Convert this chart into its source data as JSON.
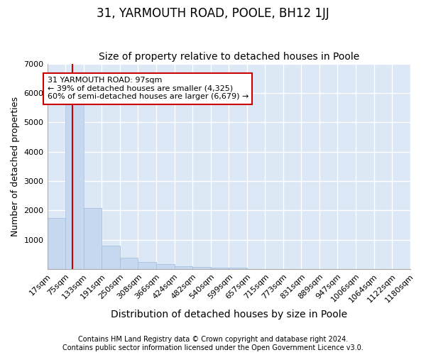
{
  "title": "31, YARMOUTH ROAD, POOLE, BH12 1JJ",
  "subtitle": "Size of property relative to detached houses in Poole",
  "xlabel": "Distribution of detached houses by size in Poole",
  "ylabel": "Number of detached properties",
  "bin_labels": [
    "17sqm",
    "75sqm",
    "133sqm",
    "191sqm",
    "250sqm",
    "308sqm",
    "366sqm",
    "424sqm",
    "482sqm",
    "540sqm",
    "599sqm",
    "657sqm",
    "715sqm",
    "773sqm",
    "831sqm",
    "889sqm",
    "947sqm",
    "1006sqm",
    "1064sqm",
    "1122sqm",
    "1180sqm"
  ],
  "bin_edges": [
    17,
    75,
    133,
    191,
    250,
    308,
    366,
    424,
    482,
    540,
    599,
    657,
    715,
    773,
    831,
    889,
    947,
    1006,
    1064,
    1122,
    1180
  ],
  "bar_heights": [
    1750,
    5750,
    2075,
    800,
    375,
    230,
    160,
    100,
    60,
    55,
    50,
    0,
    0,
    0,
    0,
    0,
    0,
    0,
    0,
    0
  ],
  "bar_color": "#c5d8f0",
  "bar_edge_color": "#a0bcd8",
  "property_line_x": 97,
  "property_line_color": "#cc0000",
  "annotation_text": "31 YARMOUTH ROAD: 97sqm\n← 39% of detached houses are smaller (4,325)\n60% of semi-detached houses are larger (6,679) →",
  "annotation_box_color": "#ffffff",
  "annotation_box_edge_color": "#cc0000",
  "ylim": [
    0,
    7000
  ],
  "yticks": [
    0,
    1000,
    2000,
    3000,
    4000,
    5000,
    6000,
    7000
  ],
  "bg_color": "#ffffff",
  "plot_bg_color": "#dce8f5",
  "grid_color": "#ffffff",
  "footer_line1": "Contains HM Land Registry data © Crown copyright and database right 2024.",
  "footer_line2": "Contains public sector information licensed under the Open Government Licence v3.0.",
  "title_fontsize": 12,
  "subtitle_fontsize": 10,
  "xlabel_fontsize": 10,
  "ylabel_fontsize": 9,
  "tick_fontsize": 8,
  "footer_fontsize": 7
}
